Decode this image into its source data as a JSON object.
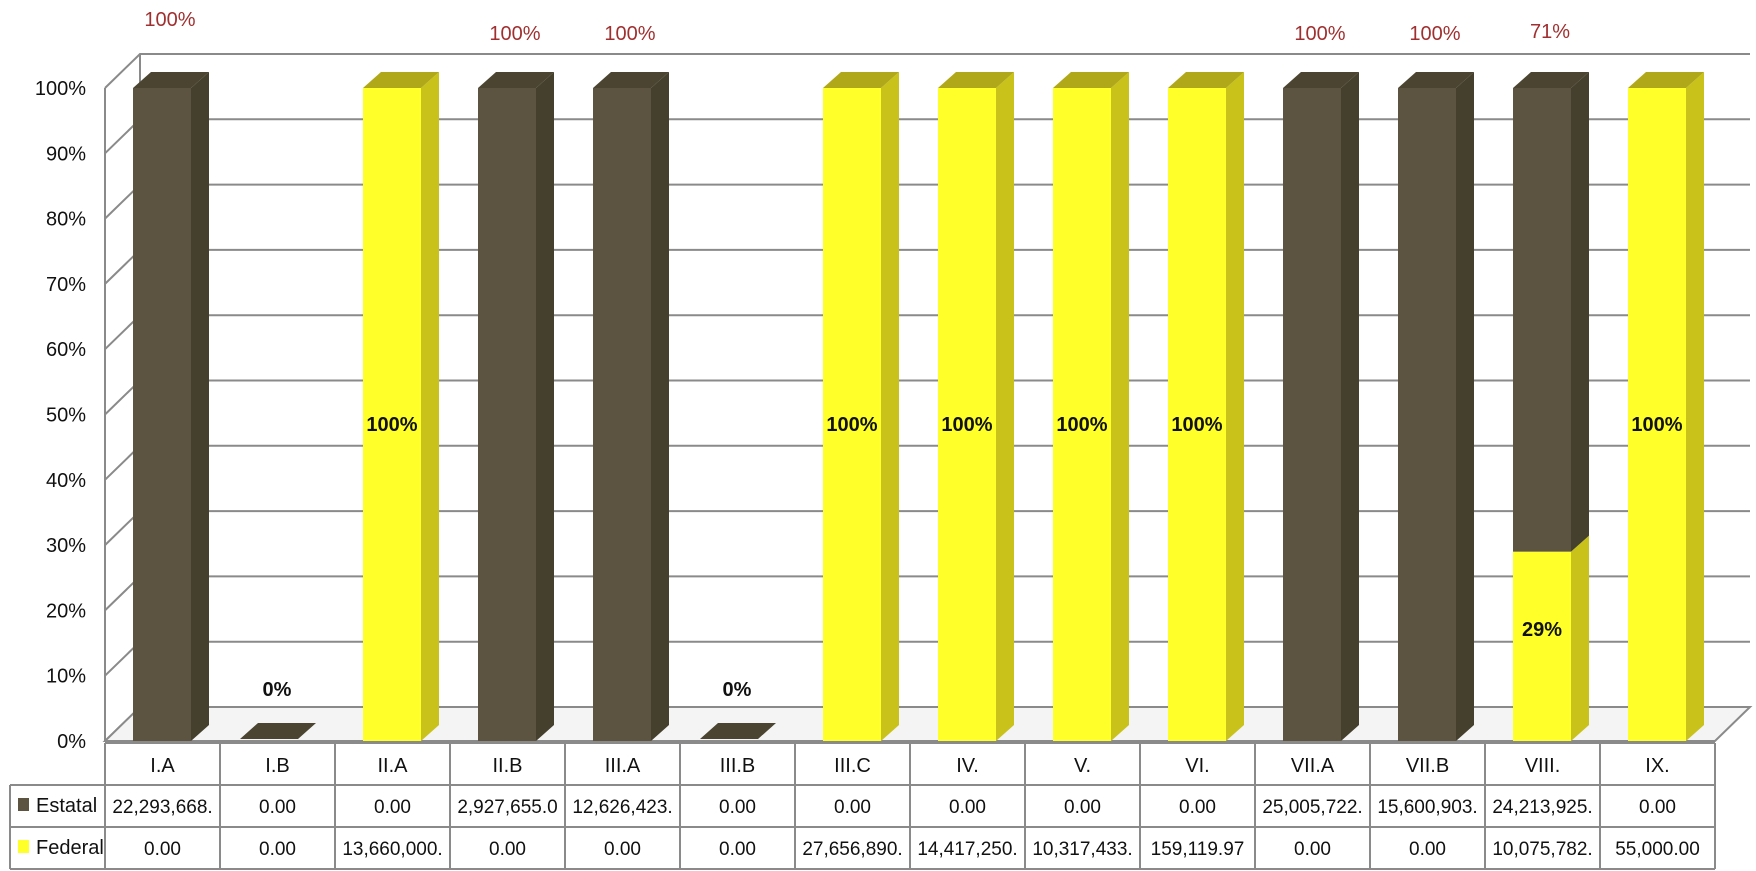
{
  "chart_data": {
    "type": "bar",
    "stacked": "percent",
    "view": "3d",
    "categories": [
      "I.A",
      "I.B",
      "II.A",
      "II.B",
      "III.A",
      "III.B",
      "III.C",
      "IV.",
      "V.",
      "VI.",
      "VII.A",
      "VII.B",
      "VIII.",
      "IX."
    ],
    "ytick_labels": [
      "0%",
      "10%",
      "20%",
      "30%",
      "40%",
      "50%",
      "60%",
      "70%",
      "80%",
      "90%",
      "100%"
    ],
    "ylim": [
      0,
      100
    ],
    "grid": true,
    "legend": "data-table",
    "series": [
      {
        "name": "Estatal",
        "color": "#5c5440",
        "share": [
          100,
          0,
          0,
          100,
          100,
          0,
          0,
          0,
          0,
          0,
          100,
          100,
          71,
          0
        ],
        "table_values": [
          "22,293,668.",
          "0.00",
          "0.00",
          "2,927,655.0",
          "12,626,423.",
          "0.00",
          "0.00",
          "0.00",
          "0.00",
          "0.00",
          "25,005,722.",
          "15,600,903.",
          "24,213,925.",
          "0.00"
        ]
      },
      {
        "name": "Federal",
        "color": "#ffff2a",
        "share": [
          0,
          0,
          100,
          0,
          0,
          0,
          100,
          100,
          100,
          100,
          0,
          0,
          29,
          100
        ],
        "table_values": [
          "0.00",
          "0.00",
          "13,660,000.",
          "0.00",
          "0.00",
          "0.00",
          "27,656,890.",
          "14,417,250.",
          "10,317,433.",
          "159,119.97",
          "0.00",
          "0.00",
          "10,075,782.",
          "55,000.00"
        ]
      }
    ],
    "data_labels": [
      {
        "category": "I.A",
        "text": "100%",
        "position": "above",
        "color": "#a03030"
      },
      {
        "category": "I.B",
        "text": "0%",
        "position": "zero",
        "color": "#111111"
      },
      {
        "category": "II.A",
        "text": "100%",
        "position": "inside",
        "color": "#111111"
      },
      {
        "category": "II.B",
        "text": "100%",
        "position": "above",
        "color": "#a03030"
      },
      {
        "category": "III.A",
        "text": "100%",
        "position": "above",
        "color": "#a03030"
      },
      {
        "category": "III.B",
        "text": "0%",
        "position": "zero",
        "color": "#111111"
      },
      {
        "category": "III.C",
        "text": "100%",
        "position": "inside",
        "color": "#111111"
      },
      {
        "category": "IV.",
        "text": "100%",
        "position": "inside",
        "color": "#111111"
      },
      {
        "category": "V.",
        "text": "100%",
        "position": "inside",
        "color": "#111111"
      },
      {
        "category": "VI.",
        "text": "100%",
        "position": "inside",
        "color": "#111111"
      },
      {
        "category": "VII.A",
        "text": "100%",
        "position": "above",
        "color": "#a03030"
      },
      {
        "category": "VII.B",
        "text": "100%",
        "position": "above",
        "color": "#a03030"
      },
      {
        "category": "VIII.",
        "text": "71%",
        "position": "above",
        "color": "#a03030"
      },
      {
        "category": "VIII.",
        "text": "29%",
        "position": "inside-federal",
        "color": "#111111"
      },
      {
        "category": "IX.",
        "text": "100%",
        "position": "inside",
        "color": "#111111"
      }
    ]
  }
}
